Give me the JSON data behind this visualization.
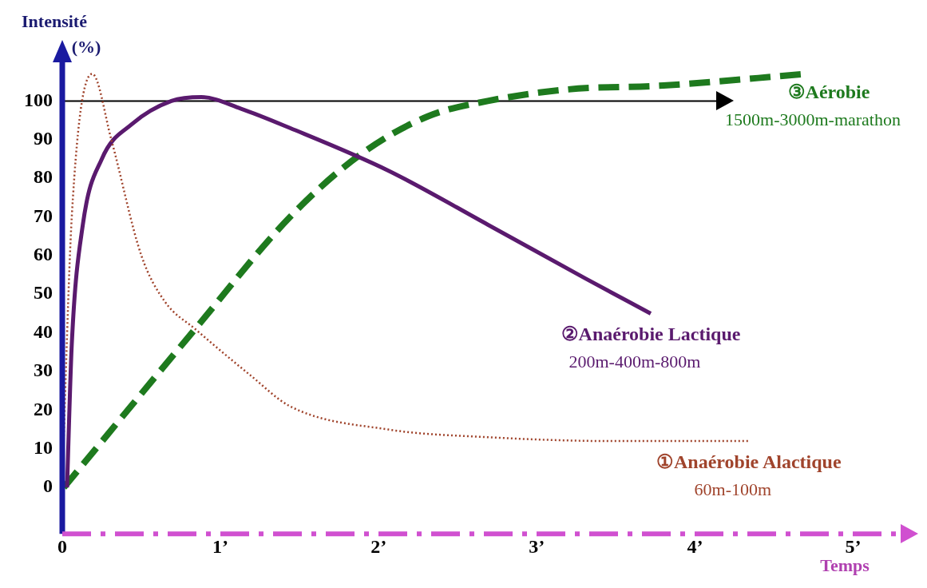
{
  "chart_data": {
    "type": "line",
    "xlabel": "Temps",
    "ylabel": "Intensité (%)",
    "xlim": [
      0,
      5.3
    ],
    "ylim": [
      -12,
      110
    ],
    "xticks": [
      {
        "value": 0,
        "label": "0"
      },
      {
        "value": 1,
        "label": "1’"
      },
      {
        "value": 2,
        "label": "2’"
      },
      {
        "value": 3,
        "label": "3’"
      },
      {
        "value": 4,
        "label": "4’"
      },
      {
        "value": 5,
        "label": "5’"
      }
    ],
    "yticks": [
      0,
      10,
      20,
      30,
      40,
      50,
      60,
      70,
      80,
      90,
      100
    ],
    "grid": false,
    "legend": false,
    "marker": "none",
    "ref_lines": [
      {
        "axis": "y",
        "value": 100,
        "color": "#000000",
        "line_style": "solid"
      }
    ],
    "series": [
      {
        "name": "①Anaérobie Alactique",
        "color": "#a0442c",
        "line_style": "dotted",
        "x": [
          0,
          0.06,
          0.19,
          0.31,
          0.5,
          0.65,
          0.84,
          1.19,
          1.44,
          2.06,
          2.69,
          3.5,
          4.34
        ],
        "values": [
          2,
          70,
          107,
          90,
          60,
          48,
          41,
          29,
          21,
          15,
          13,
          12,
          12
        ]
      },
      {
        "name": "②Anaérobie Lactique",
        "color": "#5a1a6e",
        "line_style": "solid",
        "x": [
          0.03,
          0.06,
          0.13,
          0.25,
          0.44,
          0.69,
          0.88,
          1.13,
          1.44,
          2.06,
          2.69,
          3.31,
          3.72
        ],
        "values": [
          0,
          37,
          68,
          85,
          94,
          100,
          101,
          98,
          93,
          82,
          68,
          54,
          45
        ]
      },
      {
        "name": "③Aérobie",
        "color": "#1e7a1e",
        "line_style": "dashed",
        "x": [
          0.01,
          0.84,
          1.44,
          1.88,
          2.31,
          2.69,
          3.2,
          3.8,
          4.7
        ],
        "values": [
          0,
          41,
          70,
          86,
          96,
          100,
          103,
          104,
          107
        ]
      }
    ],
    "annotations": [
      "60m-100m",
      "200m-400m-800m",
      "1500m-3000m-marathon"
    ]
  }
}
